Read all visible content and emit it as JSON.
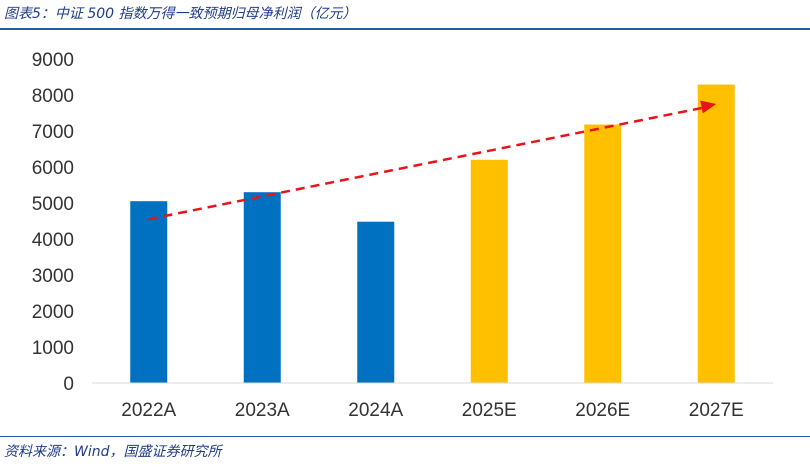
{
  "header": {
    "title": "图表5：中证 500 指数万得一致预期归母净利润（亿元）"
  },
  "footer": {
    "source": "资料来源：Wind，国盛证券研究所"
  },
  "colors": {
    "actual": "#0070c0",
    "estimate": "#ffc000",
    "trend": "#e8141b",
    "axis": "#d9d9d9",
    "brand": "#1f3c88"
  },
  "chart_data": {
    "type": "bar",
    "title": "中证 500 指数万得一致预期归母净利润（亿元）",
    "categories": [
      "2022A",
      "2023A",
      "2024A",
      "2025E",
      "2026E",
      "2027E"
    ],
    "values": [
      5050,
      5300,
      4480,
      6200,
      7180,
      8290
    ],
    "kinds": [
      "actual",
      "actual",
      "actual",
      "estimate",
      "estimate",
      "estimate"
    ],
    "yticks": [
      0,
      1000,
      2000,
      3000,
      4000,
      5000,
      6000,
      7000,
      8000,
      9000
    ],
    "ylim": [
      0,
      9000
    ],
    "xlabel": "",
    "ylabel": "",
    "grid": false,
    "annotations": [
      {
        "type": "dashed-arrow",
        "from": {
          "category": "2022A",
          "value": 4550
        },
        "to": {
          "category": "2027E",
          "value": 7750
        }
      }
    ]
  }
}
